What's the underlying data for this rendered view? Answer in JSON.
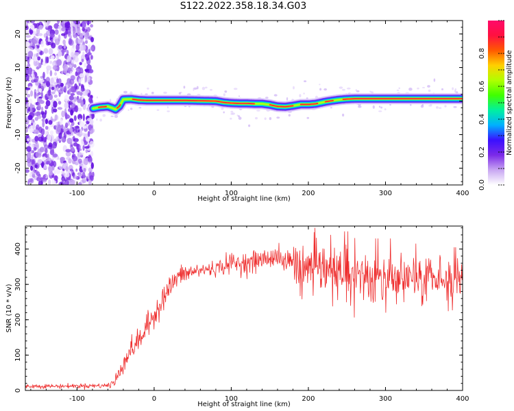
{
  "title": "S122.2022.358.18.34.G03",
  "chart_data": [
    {
      "type": "heatmap",
      "xlabel": "Height of straight line (km)",
      "ylabel": "Frequency (Hz)",
      "xlim": [
        -167,
        400
      ],
      "ylim": [
        -25,
        24
      ],
      "xticks": [
        -100,
        0,
        100,
        200,
        300,
        400
      ],
      "yticks": [
        -20,
        -10,
        0,
        10,
        20
      ],
      "noise_region_x": [
        -167,
        -79
      ],
      "ridge": {
        "x": [
          -79,
          -70,
          -60,
          -55,
          -50,
          -45,
          -40,
          -30,
          -20,
          -10,
          0,
          20,
          40,
          60,
          80,
          90,
          100,
          110,
          120,
          130,
          140,
          150,
          160,
          170,
          180,
          190,
          200,
          210,
          220,
          230,
          240,
          250,
          260,
          280,
          300,
          320,
          340,
          360,
          380,
          400
        ],
        "y": [
          -2.2,
          -1.8,
          -1.6,
          -2.0,
          -2.5,
          -1.5,
          0.5,
          0.6,
          0.3,
          0.2,
          0.2,
          0.2,
          0.2,
          0.1,
          0.0,
          -0.4,
          -0.6,
          -0.7,
          -0.7,
          -0.8,
          -0.8,
          -1.1,
          -1.6,
          -1.7,
          -1.4,
          -1.0,
          -1.0,
          -0.8,
          -0.3,
          0.1,
          0.4,
          0.6,
          0.7,
          0.7,
          0.7,
          0.7,
          0.7,
          0.7,
          0.7,
          0.7
        ]
      },
      "colorbar": {
        "label": "Normalized spectral amplitude",
        "ticks": [
          "0.0",
          "0.2",
          "0.4",
          "0.6",
          "0.8"
        ],
        "range": [
          0,
          1
        ],
        "colors": [
          "#ffffff",
          "#c8a6f2",
          "#7c2ae8",
          "#3a10ff",
          "#00b0ff",
          "#00f0a0",
          "#40ff00",
          "#b0ff00",
          "#ffd000",
          "#ff5a00",
          "#ff1040",
          "#ff0a6a"
        ]
      }
    },
    {
      "type": "line",
      "xlabel": "Height of straight line (km)",
      "ylabel": "SNR (10 * v/v)",
      "xlim": [
        -167,
        400
      ],
      "ylim": [
        0,
        465
      ],
      "xticks": [
        -100,
        0,
        100,
        200,
        300,
        400
      ],
      "yticks": [
        0,
        100,
        200,
        300,
        400
      ],
      "color": "#ee2a2a",
      "envelope": {
        "x": [
          -167,
          -120,
          -60,
          -50,
          -40,
          -30,
          -20,
          -10,
          0,
          10,
          20,
          30,
          40,
          60,
          80,
          100,
          120,
          140,
          160,
          170,
          180,
          190,
          200,
          220,
          240,
          260,
          280,
          300,
          320,
          340,
          360,
          380,
          400
        ],
        "mean": [
          12,
          12,
          14,
          25,
          80,
          115,
          140,
          175,
          215,
          255,
          290,
          320,
          330,
          340,
          345,
          360,
          360,
          370,
          380,
          360,
          370,
          345,
          345,
          340,
          330,
          330,
          320,
          320,
          320,
          315,
          315,
          315,
          315
        ],
        "spread": [
          5,
          5,
          6,
          20,
          25,
          25,
          28,
          30,
          30,
          30,
          28,
          25,
          22,
          18,
          18,
          25,
          25,
          25,
          25,
          25,
          40,
          55,
          60,
          60,
          60,
          60,
          55,
          55,
          55,
          50,
          50,
          45,
          45
        ]
      }
    }
  ]
}
